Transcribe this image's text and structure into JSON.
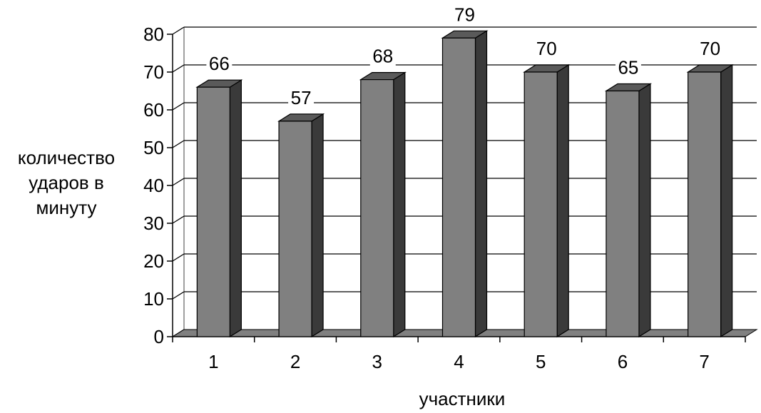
{
  "chart_data": {
    "type": "bar",
    "title": "",
    "xlabel": "участники",
    "ylabel": "количество ударов в минуту",
    "ylabel_lines": [
      "количество",
      "ударов в",
      "минуту"
    ],
    "categories": [
      "1",
      "2",
      "3",
      "4",
      "5",
      "6",
      "7"
    ],
    "values": [
      66,
      57,
      68,
      79,
      70,
      65,
      70
    ],
    "data_labels": [
      "66",
      "57",
      "68",
      "79",
      "70",
      "65",
      "70"
    ],
    "ylim": [
      0,
      80
    ],
    "yticks": [
      "0",
      "10",
      "20",
      "30",
      "40",
      "50",
      "60",
      "70",
      "80"
    ],
    "grid": true,
    "legend": "none",
    "style": "3d-column",
    "colors": {
      "bar_front": "#808080",
      "bar_side": "#3a3a3a",
      "bar_top": "#5a5a5a",
      "floor": "#808080",
      "grid": "#000000",
      "text": "#000000"
    }
  }
}
